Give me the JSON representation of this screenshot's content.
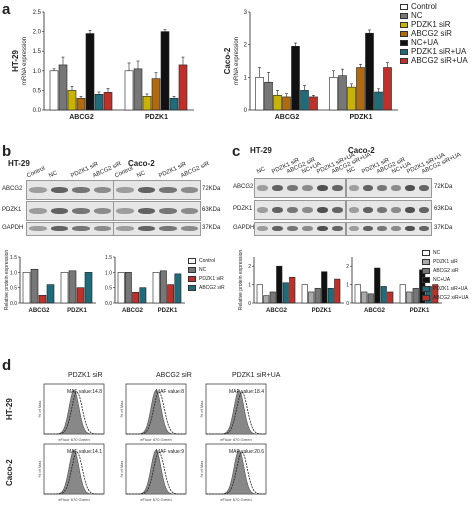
{
  "panels": {
    "a": {
      "letter": "a",
      "charts": [
        {
          "cell_line": "HT-29",
          "ylabel": "mRNA expression",
          "yticks": [
            "0.0",
            "0.5",
            "1.0",
            "1.5",
            "2.0",
            "2.5"
          ],
          "genes": [
            "ABCG2",
            "PDZK1"
          ]
        },
        {
          "cell_line": "Caco-2",
          "ylabel": "mRNA expression",
          "yticks": [
            "0",
            "1",
            "2",
            "3"
          ],
          "genes": [
            "ABCG2",
            "PDZK1"
          ]
        }
      ],
      "legend": [
        "Control",
        "NC",
        "PDZK1 siR",
        "ABCG2 siR",
        "NC+UA",
        "PDZK1 siR+UA",
        "ABCG2 siR+UA"
      ],
      "colors": [
        "#ffffff",
        "#777777",
        "#c8b400",
        "#b06a10",
        "#111111",
        "#1f6b7a",
        "#c0302a"
      ]
    },
    "b": {
      "letter": "b",
      "cells": [
        "HT-29",
        "Caco-2"
      ],
      "lanes": [
        "Control",
        "NC",
        "PDZK1 siR",
        "ABCG2 siR",
        "Control",
        "NC",
        "PDZK1 siR",
        "ABCG2 siR"
      ],
      "rows": [
        "ABCG2",
        "PDZK1",
        "GAPDH"
      ],
      "kda": [
        "72KDa",
        "63KDa",
        "37KDa"
      ],
      "ylabel": "Relative protein expression",
      "genes": [
        "ABCG2",
        "PDZK1"
      ],
      "legend": [
        "Control",
        "NC",
        "PDZK1 siR",
        "ABCG2 siR"
      ],
      "colors": [
        "#ffffff",
        "#777777",
        "#c0302a",
        "#1f6b7a"
      ]
    },
    "c": {
      "letter": "c",
      "cells": [
        "HT-29",
        "Caco-2"
      ],
      "lanes": [
        "NC",
        "PDZK1 siR",
        "ABCG2 siR",
        "NC+UA",
        "PDZK1 siR+UA",
        "ABCG2 siR+UA"
      ],
      "rows": [
        "ABCG2",
        "PDZK1",
        "GAPDH"
      ],
      "kda": [
        "72KDa",
        "63KDa",
        "37KDa"
      ],
      "ylabel": "Relative protein expression",
      "genes": [
        "ABCG2",
        "PDZK1"
      ],
      "legend": [
        "NC",
        "PDZK1 siR",
        "ABCG2 siR",
        "NC+UA",
        "PDZK1 siR+UA",
        "ABCG2 siR+UA"
      ],
      "colors": [
        "#ffffff",
        "#aaaaaa",
        "#777777",
        "#111111",
        "#1f6b7a",
        "#c0302a"
      ]
    },
    "d": {
      "letter": "d",
      "columns": [
        "PDZK1 siR",
        "ABCG2 siR",
        "PDZK1 siR+UA"
      ],
      "rows": [
        "HT-29",
        "Caco-2"
      ],
      "maf": [
        [
          "MAF value:14.8",
          "MAF value:8",
          "MAF value:18.4"
        ],
        [
          "MAF value:14.1",
          "MAF value:9",
          "MAF value:20.6"
        ]
      ],
      "ylabel": "% of Max",
      "xlabel": "eFluor 670 Green"
    }
  },
  "chart_data": [
    {
      "type": "bar",
      "cell_line": "HT-29",
      "categories": [
        "ABCG2",
        "PDZK1"
      ],
      "series": [
        {
          "name": "Control",
          "values": [
            1.0,
            1.0
          ]
        },
        {
          "name": "NC",
          "values": [
            1.15,
            1.05
          ]
        },
        {
          "name": "PDZK1 siR",
          "values": [
            0.5,
            0.35
          ]
        },
        {
          "name": "ABCG2 siR",
          "values": [
            0.3,
            0.8
          ]
        },
        {
          "name": "NC+UA",
          "values": [
            1.95,
            2.0
          ]
        },
        {
          "name": "PDZK1 siR+UA",
          "values": [
            0.4,
            0.3
          ]
        },
        {
          "name": "ABCG2 siR+UA",
          "values": [
            0.45,
            1.15
          ]
        }
      ],
      "errors": [
        [
          0.05,
          0.2
        ],
        [
          0.2,
          0.2
        ],
        [
          0.1,
          0.06
        ],
        [
          0.05,
          0.15
        ],
        [
          0.08,
          0.05
        ],
        [
          0.06,
          0.05
        ],
        [
          0.1,
          0.2
        ]
      ],
      "sig": [
        [
          "",
          "",
          ""
        ],
        [
          "",
          "",
          ""
        ]
      ],
      "ylabel": "mRNA expression",
      "ylim": [
        0,
        2.5
      ]
    },
    {
      "type": "bar",
      "cell_line": "Caco-2",
      "categories": [
        "ABCG2",
        "PDZK1"
      ],
      "series": [
        {
          "name": "Control",
          "values": [
            1.0,
            1.0
          ]
        },
        {
          "name": "NC",
          "values": [
            0.85,
            1.05
          ]
        },
        {
          "name": "PDZK1 siR",
          "values": [
            0.45,
            0.7
          ]
        },
        {
          "name": "ABCG2 siR",
          "values": [
            0.4,
            1.3
          ]
        },
        {
          "name": "NC+UA",
          "values": [
            1.95,
            2.35
          ]
        },
        {
          "name": "PDZK1 siR+UA",
          "values": [
            0.6,
            0.55
          ]
        },
        {
          "name": "ABCG2 siR+UA",
          "values": [
            0.4,
            1.3
          ]
        }
      ],
      "errors": [
        [
          0.3,
          0.2
        ],
        [
          0.3,
          0.2
        ],
        [
          0.15,
          0.1
        ],
        [
          0.1,
          0.1
        ],
        [
          0.1,
          0.1
        ],
        [
          0.15,
          0.1
        ],
        [
          0.05,
          0.15
        ]
      ],
      "ylabel": "mRNA expression",
      "ylim": [
        0,
        3
      ]
    },
    {
      "type": "bar",
      "panel": "b",
      "cell_line": "HT-29",
      "categories": [
        "ABCG2",
        "PDZK1"
      ],
      "series": [
        {
          "name": "Control",
          "values": [
            1.0,
            1.0
          ]
        },
        {
          "name": "NC",
          "values": [
            1.1,
            1.05
          ]
        },
        {
          "name": "PDZK1 siR",
          "values": [
            0.25,
            0.5
          ]
        },
        {
          "name": "ABCG2 siR",
          "values": [
            0.6,
            1.0
          ]
        }
      ],
      "ylim": [
        0,
        1.5
      ]
    },
    {
      "type": "bar",
      "panel": "b",
      "cell_line": "Caco-2",
      "categories": [
        "ABCG2",
        "PDZK1"
      ],
      "series": [
        {
          "name": "Control",
          "values": [
            1.0,
            1.0
          ]
        },
        {
          "name": "NC",
          "values": [
            1.0,
            1.05
          ]
        },
        {
          "name": "PDZK1 siR",
          "values": [
            0.35,
            0.6
          ]
        },
        {
          "name": "ABCG2 siR",
          "values": [
            0.5,
            0.95
          ]
        }
      ],
      "ylim": [
        0,
        1.5
      ]
    },
    {
      "type": "bar",
      "panel": "c",
      "cell_line": "HT-29",
      "categories": [
        "ABCG2",
        "PDZK1"
      ],
      "series": [
        {
          "name": "NC",
          "values": [
            1.0,
            1.0
          ]
        },
        {
          "name": "PDZK1 siR",
          "values": [
            0.4,
            0.6
          ]
        },
        {
          "name": "ABCG2 siR",
          "values": [
            0.6,
            0.8
          ]
        },
        {
          "name": "NC+UA",
          "values": [
            2.0,
            1.7
          ]
        },
        {
          "name": "PDZK1 siR+UA",
          "values": [
            1.1,
            0.8
          ]
        },
        {
          "name": "ABCG2 siR+UA",
          "values": [
            1.4,
            1.3
          ]
        }
      ],
      "ylim": [
        0,
        2.5
      ]
    },
    {
      "type": "bar",
      "panel": "c",
      "cell_line": "Caco-2",
      "categories": [
        "ABCG2",
        "PDZK1"
      ],
      "series": [
        {
          "name": "NC",
          "values": [
            1.0,
            1.0
          ]
        },
        {
          "name": "PDZK1 siR",
          "values": [
            0.6,
            0.6
          ]
        },
        {
          "name": "ABCG2 siR",
          "values": [
            0.5,
            0.8
          ]
        },
        {
          "name": "NC+UA",
          "values": [
            1.9,
            1.8
          ]
        },
        {
          "name": "PDZK1 siR+UA",
          "values": [
            0.9,
            0.9
          ]
        },
        {
          "name": "ABCG2 siR+UA",
          "values": [
            0.6,
            1.0
          ]
        }
      ],
      "ylim": [
        0,
        2.5
      ]
    }
  ]
}
